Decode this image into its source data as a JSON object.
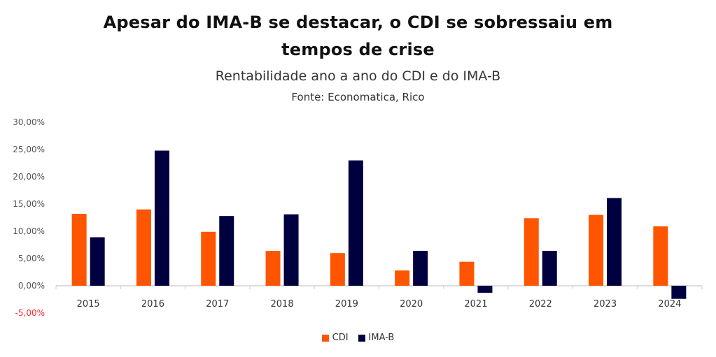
{
  "chart_data": {
    "type": "bar",
    "title": "Apesar do IMA-B se destacar, o CDI se sobressaiu em tempos de crise",
    "title_lines": [
      "Apesar do IMA-B se destacar, o CDI se sobressaiu em",
      "tempos de crise"
    ],
    "subtitle": "Rentabilidade ano a ano do CDI e do IMA-B",
    "source": "Fonte: Economatica, Rico",
    "xlabel": "",
    "ylabel": "",
    "categories": [
      "2015",
      "2016",
      "2017",
      "2018",
      "2019",
      "2020",
      "2021",
      "2022",
      "2023",
      "2024"
    ],
    "series": [
      {
        "name": "CDI",
        "color": "#ff5500",
        "values": [
          13.2,
          14.0,
          9.9,
          6.4,
          6.0,
          2.8,
          4.4,
          12.4,
          13.0,
          10.9
        ]
      },
      {
        "name": "IMA-B",
        "color": "#000040",
        "values": [
          8.9,
          24.8,
          12.8,
          13.1,
          23.0,
          6.4,
          -1.3,
          6.4,
          16.1,
          -2.4
        ]
      }
    ],
    "ylim": [
      -5,
      30
    ],
    "yticks": [
      30,
      25,
      20,
      15,
      10,
      5,
      0,
      -5
    ],
    "ytick_labels": [
      "30,00%",
      "25,00%",
      "20,00%",
      "15,00%",
      "10,00%",
      "5,00%",
      "0,00%",
      "-5,00%"
    ],
    "negative_tick_color": "#ff2a2a",
    "grid": false,
    "legend_position": "bottom-center"
  }
}
